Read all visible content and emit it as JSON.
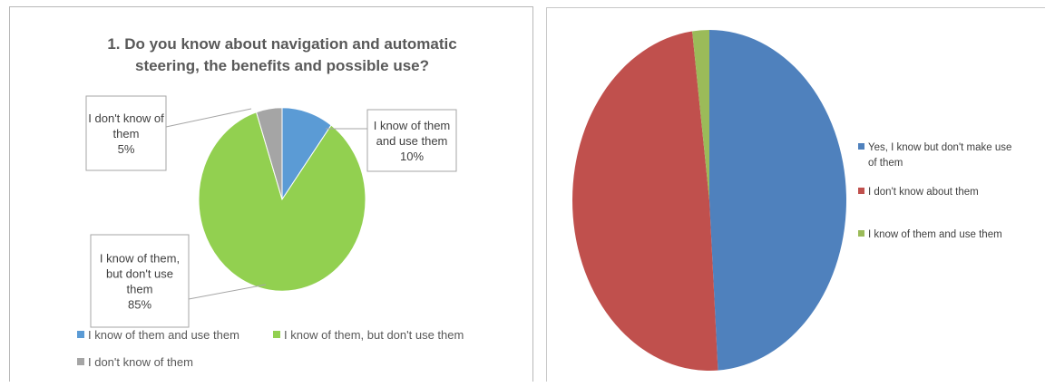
{
  "chart_data": [
    {
      "type": "pie",
      "title_lines": [
        "1. Do you know about navigation and automatic",
        "steering, the benefits and possible use?"
      ],
      "slices": [
        {
          "name": "I know of them and use them",
          "value": 10,
          "color": "#5b9bd5",
          "callout_lines": [
            "I know of them",
            "and use them",
            "10%"
          ]
        },
        {
          "name": "I know of them, but don't use them",
          "value": 85,
          "color": "#92d050",
          "callout_lines": [
            "I know of them,",
            "but don't use",
            "them",
            "85%"
          ]
        },
        {
          "name": "I don't know of them",
          "value": 5,
          "color": "#a5a5a5",
          "callout_lines": [
            "I don't know of",
            "them",
            "5%"
          ]
        }
      ],
      "legend": {
        "placement": "bottom",
        "items": [
          "I know of them and use them",
          "I know of them, but don't use them",
          "I don't know of them"
        ]
      }
    },
    {
      "type": "pie",
      "slices": [
        {
          "name": "Yes, I know but don't make use of them",
          "value": 49,
          "color": "#4f81bd"
        },
        {
          "name": "I don't know about them",
          "value": 49,
          "color": "#c0504d"
        },
        {
          "name": "I  know of them and use them",
          "value": 2,
          "color": "#9bbb59"
        }
      ],
      "legend": {
        "placement": "right",
        "items": [
          [
            "Yes, I know but don't make use",
            "of them"
          ],
          [
            "I don't know about them"
          ],
          [
            "I  know of them and use them"
          ]
        ]
      }
    }
  ]
}
